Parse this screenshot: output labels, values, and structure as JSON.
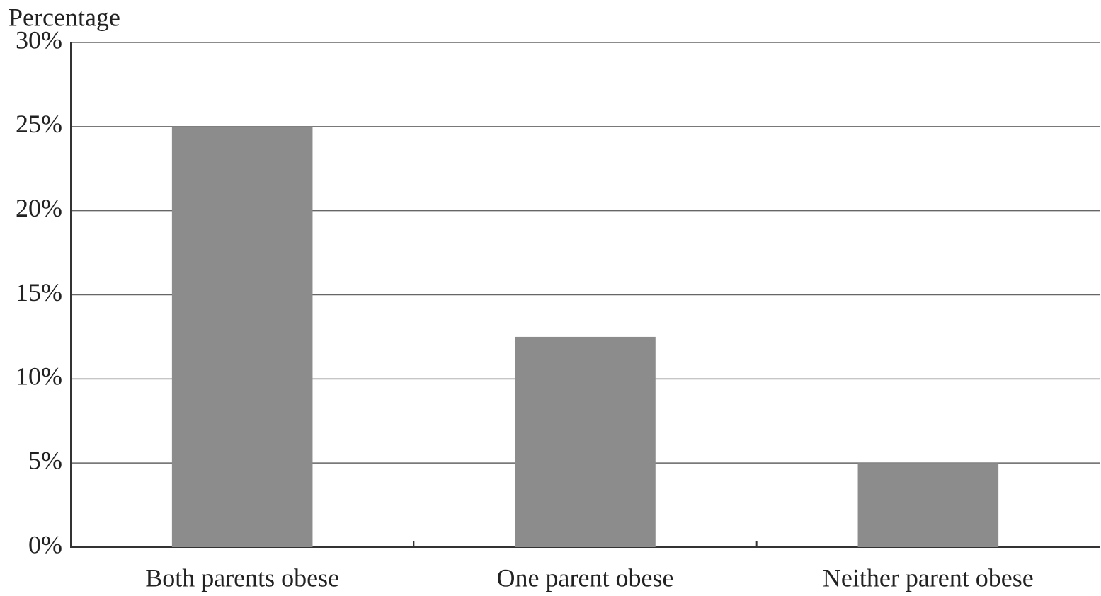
{
  "chart_data": {
    "type": "bar",
    "y_label": "Percentage",
    "categories": [
      "Both parents obese",
      "One parent obese",
      "Neither parent obese"
    ],
    "values": [
      25,
      12.5,
      5
    ],
    "color": "#8c8c8c",
    "ylim": [
      0,
      30
    ],
    "yticks": [
      {
        "value": 0,
        "label": "0%"
      },
      {
        "value": 5,
        "label": "5%"
      },
      {
        "value": 10,
        "label": "10%"
      },
      {
        "value": 15,
        "label": "15%"
      },
      {
        "value": 20,
        "label": "20%"
      },
      {
        "value": 25,
        "label": "25%"
      },
      {
        "value": 30,
        "label": "30%"
      }
    ],
    "grid": true
  }
}
